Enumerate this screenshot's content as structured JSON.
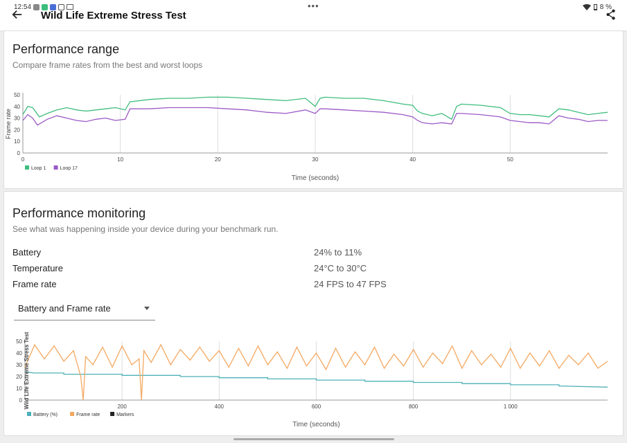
{
  "status": {
    "time": "12:54",
    "battery": "8 %"
  },
  "header": {
    "title": "Wild Life Extreme Stress Test"
  },
  "range_card": {
    "title": "Performance range",
    "subtitle": "Compare frame rates from the best and worst loops"
  },
  "monitor_card": {
    "title": "Performance monitoring",
    "subtitle": "See what was happening inside your device during your benchmark run.",
    "metrics": [
      {
        "label": "Battery",
        "value": "24% to 11%"
      },
      {
        "label": "Temperature",
        "value": "24°C to 30°C"
      },
      {
        "label": "Frame rate",
        "value": "24 FPS to 47 FPS"
      }
    ],
    "dropdown": {
      "selected": "Battery and Frame rate"
    }
  },
  "colors": {
    "loop1": "#3dbd7d",
    "loop17": "#9b59c6",
    "battery": "#4cb0b8",
    "framerate": "#f4a860",
    "markers": "#222222"
  },
  "chart_data": [
    {
      "type": "line",
      "xlabel": "Time (seconds)",
      "ylabel": "Frame rate",
      "xlim": [
        0,
        60
      ],
      "ylim": [
        0,
        50
      ],
      "xticks": [
        0,
        10,
        20,
        30,
        40,
        50
      ],
      "yticks": [
        0,
        10,
        20,
        30,
        40,
        50
      ],
      "legend_position": "bottom-left",
      "series": [
        {
          "name": "Loop 1",
          "x": [
            0,
            0.5,
            1,
            1.7,
            2.5,
            3.5,
            4.5,
            5.5,
            6.5,
            7.5,
            8.5,
            9.5,
            10.5,
            11,
            13,
            15,
            17,
            19,
            21,
            23,
            25,
            27,
            29,
            30,
            30.5,
            31,
            33,
            35,
            37,
            39,
            40,
            40.5,
            41,
            42,
            43,
            44,
            44.5,
            45,
            47,
            49,
            50,
            51,
            52,
            53,
            54,
            55,
            56,
            57,
            58,
            59,
            60
          ],
          "y": [
            33,
            40,
            39,
            31,
            34,
            37,
            39,
            37,
            36,
            37,
            38,
            39,
            37,
            44,
            46,
            47,
            47,
            48,
            48,
            47,
            46,
            45,
            47,
            40,
            47,
            48,
            47,
            47,
            45,
            42,
            41,
            36,
            34,
            32,
            34,
            29,
            40,
            42,
            41,
            39,
            34,
            33,
            33,
            32,
            31,
            38,
            37,
            35,
            33,
            34,
            35
          ]
        },
        {
          "name": "Loop 17",
          "x": [
            0,
            0.5,
            1,
            1.5,
            2.5,
            3.5,
            4.5,
            5.5,
            6.5,
            7.5,
            8.5,
            9.5,
            10.5,
            11,
            13,
            15,
            17,
            19,
            21,
            23,
            25,
            27,
            29,
            30,
            30.5,
            31,
            33,
            35,
            37,
            39,
            40,
            40.5,
            41,
            42,
            43,
            44,
            44.5,
            45,
            47,
            49,
            50,
            51,
            52,
            53,
            54,
            55,
            56,
            57,
            58,
            59,
            60
          ],
          "y": [
            28,
            33,
            30,
            24,
            29,
            32,
            30,
            28,
            27,
            29,
            30,
            28,
            29,
            38,
            38,
            39,
            39,
            39,
            38,
            37,
            35,
            34,
            37,
            34,
            38,
            38,
            37,
            36,
            35,
            33,
            31,
            28,
            26,
            25,
            26,
            25,
            34,
            34,
            33,
            31,
            28,
            27,
            26,
            26,
            25,
            32,
            30,
            29,
            27,
            28,
            28
          ]
        }
      ]
    },
    {
      "type": "line",
      "xlabel": "Time (seconds)",
      "ylabel": "Wild Life Extreme Stress Test",
      "xlim": [
        0,
        1200
      ],
      "ylim": [
        0,
        50
      ],
      "xticks": [
        200,
        400,
        600,
        800,
        1000
      ],
      "xtick_labels": [
        "200",
        "400",
        "600",
        "800",
        "1 000"
      ],
      "yticks": [
        0,
        10,
        20,
        30,
        40,
        50
      ],
      "legend_position": "bottom-left",
      "series": [
        {
          "name": "Battery (%)",
          "x": [
            0,
            20,
            80,
            80,
            200,
            200,
            320,
            320,
            400,
            400,
            500,
            500,
            600,
            600,
            700,
            700,
            800,
            800,
            900,
            900,
            1000,
            1000,
            1100,
            1100,
            1200
          ],
          "y": [
            24,
            23,
            23,
            22,
            22,
            21,
            21,
            20,
            20,
            19,
            19,
            18,
            18,
            17,
            17,
            16,
            16,
            15,
            15,
            14,
            14,
            13,
            13,
            12,
            11
          ]
        },
        {
          "name": "Frame rate",
          "x": [
            0,
            20,
            40,
            60,
            80,
            100,
            115,
            120,
            125,
            140,
            160,
            180,
            200,
            220,
            235,
            240,
            245,
            260,
            280,
            300,
            320,
            340,
            360,
            380,
            400,
            420,
            440,
            460,
            480,
            500,
            520,
            540,
            560,
            580,
            600,
            620,
            640,
            660,
            680,
            700,
            720,
            740,
            760,
            780,
            800,
            820,
            840,
            860,
            880,
            900,
            920,
            940,
            960,
            980,
            1000,
            1020,
            1040,
            1060,
            1080,
            1100,
            1120,
            1140,
            1160,
            1180,
            1200
          ],
          "y": [
            28,
            47,
            35,
            46,
            33,
            42,
            20,
            0,
            37,
            30,
            45,
            28,
            46,
            30,
            35,
            0,
            42,
            32,
            47,
            30,
            43,
            34,
            45,
            33,
            42,
            28,
            44,
            29,
            46,
            30,
            41,
            27,
            45,
            29,
            40,
            26,
            44,
            28,
            41,
            30,
            45,
            27,
            39,
            29,
            43,
            28,
            40,
            31,
            46,
            27,
            42,
            30,
            39,
            28,
            44,
            27,
            40,
            29,
            42,
            27,
            38,
            30,
            40,
            27,
            33
          ]
        },
        {
          "name": "Markers",
          "x": [],
          "y": []
        }
      ]
    }
  ]
}
